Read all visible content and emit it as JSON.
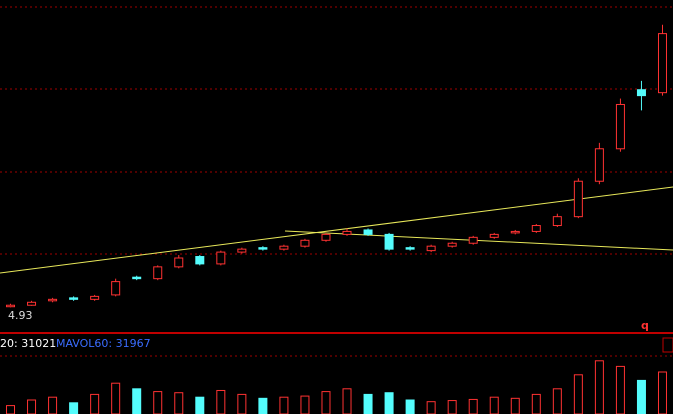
{
  "chart_data": {
    "type": "candlestick",
    "low_label": "4.93",
    "open": [
      4.95,
      5.0,
      5.15,
      5.25,
      5.2,
      5.35,
      5.95,
      5.9,
      6.3,
      6.65,
      6.4,
      6.8,
      6.95,
      6.9,
      7.0,
      7.2,
      7.4,
      7.55,
      7.4,
      6.95,
      6.85,
      7.0,
      7.1,
      7.3,
      7.45,
      7.5,
      7.7,
      8.0,
      9.2,
      10.3,
      12.3,
      12.2
    ],
    "high": [
      5.05,
      5.15,
      5.25,
      5.3,
      5.35,
      5.9,
      6.0,
      6.35,
      6.7,
      6.7,
      6.85,
      6.95,
      7.0,
      7.05,
      7.25,
      7.45,
      7.6,
      7.6,
      7.45,
      7.0,
      7.05,
      7.15,
      7.35,
      7.45,
      7.55,
      7.75,
      8.1,
      9.3,
      10.5,
      12.0,
      12.6,
      14.5
    ],
    "low": [
      4.93,
      4.98,
      5.1,
      5.15,
      5.15,
      5.3,
      5.85,
      5.85,
      6.25,
      6.35,
      6.35,
      6.75,
      6.85,
      6.85,
      6.95,
      7.15,
      7.35,
      7.35,
      6.85,
      6.85,
      6.8,
      6.95,
      7.05,
      7.25,
      7.4,
      7.45,
      7.65,
      7.95,
      9.1,
      10.2,
      11.6,
      12.1
    ],
    "close": [
      5.0,
      5.1,
      5.2,
      5.2,
      5.3,
      5.8,
      5.9,
      6.3,
      6.6,
      6.4,
      6.8,
      6.9,
      6.9,
      7.0,
      7.2,
      7.4,
      7.5,
      7.4,
      6.9,
      6.9,
      7.0,
      7.1,
      7.3,
      7.4,
      7.5,
      7.7,
      8.0,
      9.2,
      10.3,
      11.8,
      12.1,
      14.2
    ],
    "ylim": [
      4.5,
      15
    ],
    "up_color": "#ff3232",
    "down_color": "#54fcfc",
    "volume": {
      "values": [
        15000,
        25000,
        30000,
        20000,
        35000,
        55000,
        45000,
        40000,
        38000,
        30000,
        42000,
        35000,
        28000,
        30000,
        32000,
        40000,
        45000,
        35000,
        38000,
        25000,
        22000,
        24000,
        26000,
        30000,
        28000,
        35000,
        45000,
        70000,
        95000,
        85000,
        60000,
        75000
      ],
      "ylim": [
        0,
        100000
      ],
      "labels": [
        {
          "text": "20: 31021",
          "color": "#ffffff"
        },
        {
          "text": "MAVOL60: 31967",
          "color": "#3a6cff"
        }
      ]
    },
    "marker": "q"
  }
}
